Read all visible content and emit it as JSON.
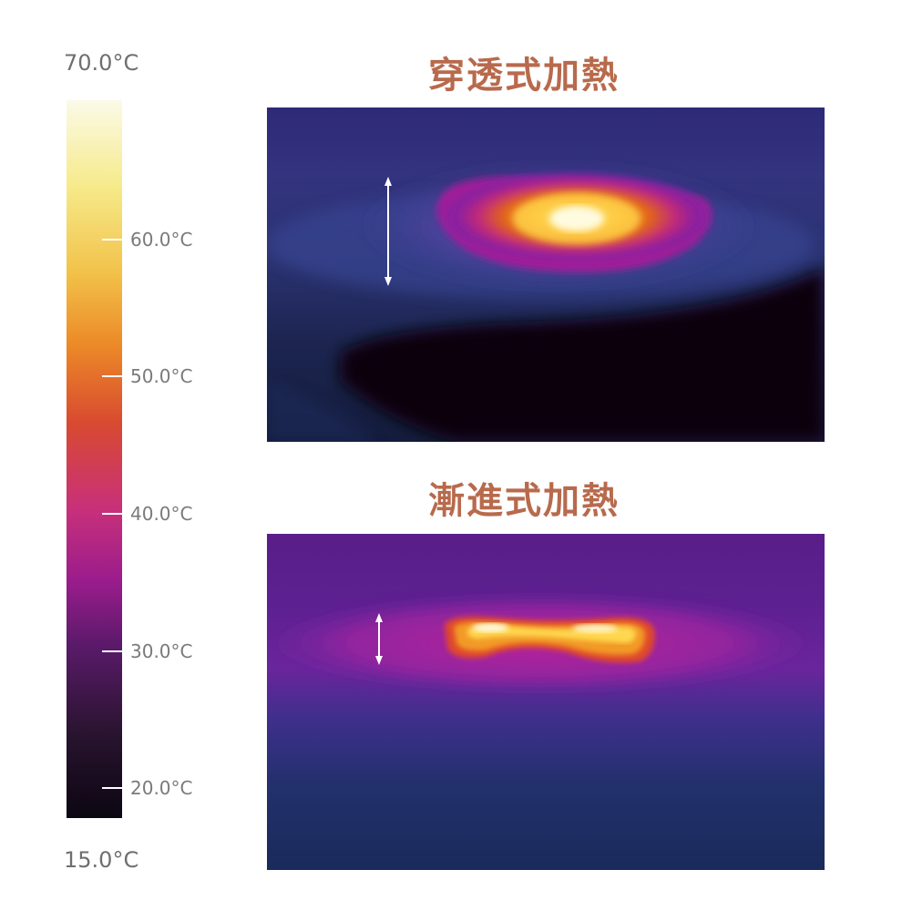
{
  "scale": {
    "max_label": "70.0°C",
    "min_label": "15.0°C",
    "ticks": [
      "60.0°C",
      "50.0°C",
      "40.0°C",
      "30.0°C",
      "20.0°C"
    ]
  },
  "panels": {
    "top_title": "穿透式加熱",
    "bottom_title": "漸進式加熱"
  }
}
